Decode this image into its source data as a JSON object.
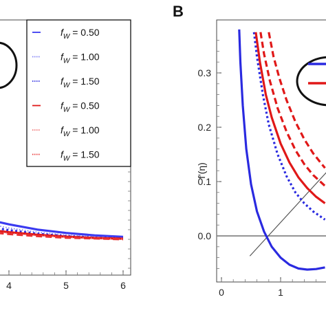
{
  "chart_data": [
    {
      "panel_label": "",
      "type": "line",
      "xlabel": "",
      "ylabel": "",
      "x_ticks": [
        "4",
        "5",
        "6"
      ],
      "xlim": [
        3.8,
        6.1
      ],
      "legend_position": "top-right",
      "series": [
        {
          "legend_label": "f",
          "legend_sub": "W",
          "legend_value": "= 0.50",
          "color": "#3a3af0",
          "dash": "solid",
          "x": [
            3.8,
            4.0,
            4.5,
            5.0,
            5.5,
            6.0
          ],
          "y": [
            0.07,
            0.06,
            0.04,
            0.027,
            0.018,
            0.012
          ]
        },
        {
          "legend_label": "f",
          "legend_sub": "W",
          "legend_value": "= 1.00",
          "color": "#7d7df5",
          "dash": "dotted-light",
          "x": [
            3.8,
            4.0,
            4.5,
            5.0,
            5.5,
            6.0
          ],
          "y": [
            0.055,
            0.046,
            0.03,
            0.019,
            0.012,
            0.008
          ]
        },
        {
          "legend_label": "f",
          "legend_sub": "W",
          "legend_value": "= 1.50",
          "color": "#2a2ae0",
          "dash": "dotted",
          "x": [
            3.8,
            4.0,
            4.5,
            5.0,
            5.5,
            6.0
          ],
          "y": [
            0.045,
            0.038,
            0.024,
            0.015,
            0.009,
            0.006
          ]
        },
        {
          "legend_label": "f",
          "legend_sub": "W",
          "legend_value": "= 0.50",
          "color": "#e01818",
          "dash": "solid",
          "x": [
            3.8,
            4.0,
            4.5,
            5.0,
            5.5,
            6.0
          ],
          "y": [
            0.035,
            0.03,
            0.02,
            0.013,
            0.008,
            0.005
          ]
        },
        {
          "legend_label": "f",
          "legend_sub": "W",
          "legend_value": "= 1.00",
          "color": "#f07070",
          "dash": "dotted-light",
          "x": [
            3.8,
            4.0,
            4.5,
            5.0,
            5.5,
            6.0
          ],
          "y": [
            0.03,
            0.026,
            0.017,
            0.011,
            0.007,
            0.004
          ]
        },
        {
          "legend_label": "f",
          "legend_sub": "W",
          "legend_value": "= 1.50",
          "color": "#e83030",
          "dash": "dashed",
          "x": [
            3.8,
            4.0,
            4.5,
            5.0,
            5.5,
            6.0
          ],
          "y": [
            0.027,
            0.023,
            0.015,
            0.009,
            0.006,
            0.003
          ]
        }
      ]
    },
    {
      "panel_label": "B",
      "type": "line",
      "xlabel": "",
      "ylabel": "f'(η)",
      "x_ticks": [
        "0",
        "1"
      ],
      "y_ticks": [
        "0.0",
        "0.1",
        "0.2",
        "0.3"
      ],
      "xlim": [
        -0.1,
        1.8
      ],
      "ylim": [
        -0.08,
        0.38
      ],
      "reference_line_y": 0,
      "series": [
        {
          "color": "#2a2ae0",
          "dash": "solid",
          "x": [
            0.3,
            0.32,
            0.36,
            0.42,
            0.5,
            0.6,
            0.72,
            0.85,
            1.0,
            1.15,
            1.3,
            1.45,
            1.6,
            1.75
          ],
          "y": [
            0.38,
            0.32,
            0.24,
            0.16,
            0.095,
            0.045,
            0.008,
            -0.02,
            -0.04,
            -0.053,
            -0.06,
            -0.062,
            -0.061,
            -0.058
          ]
        },
        {
          "color": "#2a2ae0",
          "dash": "dotted",
          "x": [
            0.55,
            0.6,
            0.7,
            0.8,
            0.95,
            1.1,
            1.25,
            1.4,
            1.55,
            1.75
          ],
          "y": [
            0.375,
            0.33,
            0.26,
            0.205,
            0.15,
            0.11,
            0.08,
            0.06,
            0.045,
            0.03
          ]
        },
        {
          "color": "#e01818",
          "dash": "solid",
          "x": [
            0.58,
            0.65,
            0.75,
            0.85,
            1.0,
            1.15,
            1.3,
            1.45,
            1.6,
            1.75
          ],
          "y": [
            0.375,
            0.32,
            0.26,
            0.218,
            0.17,
            0.135,
            0.108,
            0.088,
            0.072,
            0.06
          ]
        },
        {
          "color": "#e01818",
          "dash": "dashed",
          "x": [
            0.66,
            0.72,
            0.82,
            0.95,
            1.1,
            1.25,
            1.4,
            1.55,
            1.75
          ],
          "y": [
            0.375,
            0.335,
            0.285,
            0.235,
            0.192,
            0.158,
            0.132,
            0.112,
            0.092
          ]
        },
        {
          "color": "#e01818",
          "dash": "dashed",
          "x": [
            0.8,
            0.88,
            0.98,
            1.1,
            1.25,
            1.4,
            1.55,
            1.75
          ],
          "y": [
            0.375,
            0.33,
            0.29,
            0.25,
            0.21,
            0.178,
            0.152,
            0.125
          ]
        }
      ],
      "annotation_line": {
        "x": [
          0.48,
          1.8
        ],
        "y": [
          -0.037,
          0.12
        ]
      }
    }
  ]
}
